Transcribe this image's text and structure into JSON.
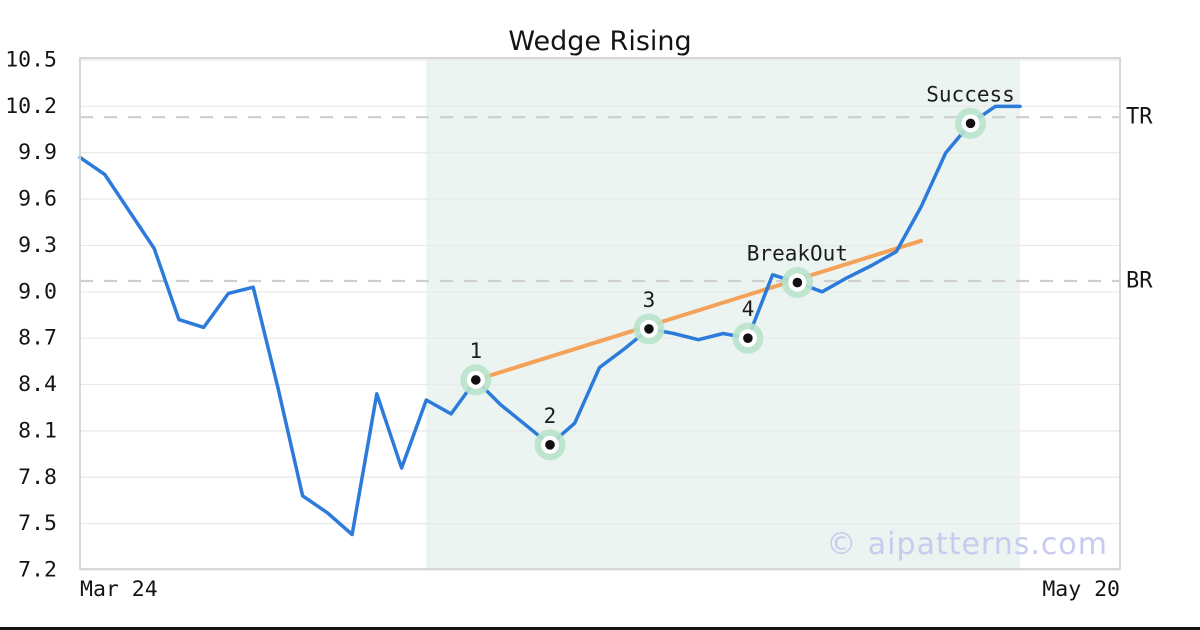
{
  "title": "Wedge Rising",
  "watermark": "© aipatterns.com",
  "x_axis": {
    "left_label": "Mar 24",
    "right_label": "May 20"
  },
  "y_axis": {
    "ticks": [
      "10.5",
      "10.2",
      "9.9",
      "9.6",
      "9.3",
      "9.0",
      "8.7",
      "8.4",
      "8.1",
      "7.8",
      "7.5",
      "7.2"
    ]
  },
  "colors": {
    "price_line": "#2c7bdb",
    "trendline": "#f4a159",
    "pattern_region": "#ebf4f0",
    "marker_halo": "#b9e3cb",
    "marker_dot": "#111111",
    "level_dash": "#cfcfcf",
    "grid": "#e9e9e9",
    "plot_border": "#d4d4d4",
    "text": "#141414",
    "watermark": "#c7cbee"
  },
  "chart_data": {
    "type": "line",
    "title": "Wedge Rising",
    "xlabel": "",
    "ylabel": "",
    "x_start_label": "Mar 24",
    "x_end_label": "May 20",
    "ylim": [
      7.2,
      10.5
    ],
    "y_tick_step": 0.3,
    "grid": true,
    "legend_position": "none",
    "series": [
      {
        "name": "price",
        "values": [
          9.87,
          9.76,
          9.52,
          9.28,
          8.82,
          8.77,
          8.99,
          9.03,
          8.38,
          7.68,
          7.57,
          7.43,
          8.34,
          7.86,
          8.3,
          8.21,
          8.43,
          8.27,
          8.14,
          8.01,
          8.15,
          8.51,
          8.63,
          8.76,
          8.73,
          8.69,
          8.73,
          8.7,
          9.11,
          9.06,
          9.0,
          9.09,
          9.17,
          9.26,
          9.55,
          9.9,
          10.09,
          10.2,
          10.2
        ]
      }
    ],
    "pattern_region": {
      "from_index": 14,
      "to_index": 38
    },
    "trendline": {
      "from_index": 16,
      "from_value": 8.43,
      "to_index": 34,
      "to_value": 9.33
    },
    "levels": [
      {
        "label": "TR",
        "value": 10.13
      },
      {
        "label": "BR",
        "value": 9.07
      }
    ],
    "annotations": [
      {
        "label": "1",
        "index": 16,
        "value": 8.43
      },
      {
        "label": "2",
        "index": 19,
        "value": 8.01
      },
      {
        "label": "3",
        "index": 23,
        "value": 8.76
      },
      {
        "label": "4",
        "index": 27,
        "value": 8.7
      },
      {
        "label": "BreakOut",
        "index": 29,
        "value": 9.06
      },
      {
        "label": "Success",
        "index": 36,
        "value": 10.09
      }
    ]
  }
}
